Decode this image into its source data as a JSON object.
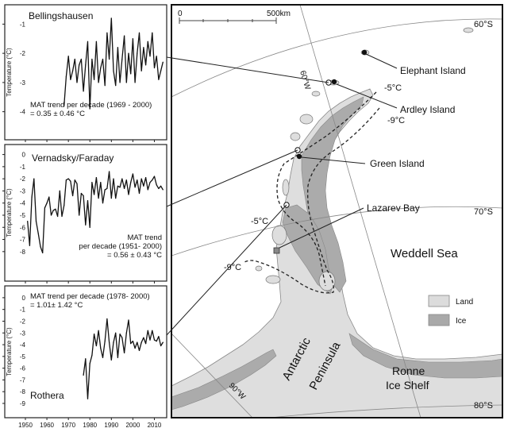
{
  "chart_data": [
    {
      "type": "line",
      "title": "Bellingshausen",
      "ylabel": "Temperature (°C)",
      "trend_text": [
        "MAT trend per decade (1969 - 2000)",
        "= 0.35 ± 0.46 °C"
      ],
      "xlim": [
        1950,
        2015
      ],
      "ylim": [
        -4.2,
        -0.5
      ],
      "xticks": [
        "1950",
        "1960",
        "1970",
        "1980",
        "1990",
        "2000",
        "2010"
      ],
      "yticks": [
        "-1",
        "-2",
        "-3",
        "-4"
      ],
      "x": [
        1968,
        1969,
        1970,
        1971,
        1972,
        1973,
        1974,
        1975,
        1976,
        1977,
        1978,
        1979,
        1980,
        1981,
        1982,
        1983,
        1984,
        1985,
        1986,
        1987,
        1988,
        1989,
        1990,
        1991,
        1992,
        1993,
        1994,
        1995,
        1996,
        1997,
        1998,
        1999,
        2000,
        2001,
        2002,
        2003,
        2004,
        2005,
        2006,
        2007,
        2008,
        2009,
        2010,
        2011,
        2012,
        2013,
        2014
      ],
      "values": [
        -3.8,
        -2.8,
        -2.1,
        -2.9,
        -2.6,
        -2.2,
        -3.0,
        -2.4,
        -2.2,
        -3.3,
        -2.4,
        -1.6,
        -3.9,
        -2.2,
        -2.9,
        -1.6,
        -3.0,
        -2.5,
        -2.2,
        -3.1,
        -1.3,
        -2.2,
        -0.8,
        -2.6,
        -3.1,
        -1.8,
        -3.0,
        -2.2,
        -1.4,
        -3.0,
        -2.0,
        -2.7,
        -1.5,
        -3.0,
        -2.0,
        -1.3,
        -2.6,
        -1.8,
        -2.4,
        -1.6,
        -2.1,
        -1.3,
        -2.5,
        -2.1,
        -2.9,
        -2.6,
        -2.3
      ]
    },
    {
      "type": "line",
      "title": "Vernadsky/Faraday",
      "ylabel": "Temperature (°C)",
      "trend_text": [
        "MAT trend",
        "per decade (1951- 2000)",
        "= 0.56 ± 0.43 °C"
      ],
      "xlim": [
        1950,
        2015
      ],
      "ylim": [
        -8.6,
        0.3
      ],
      "xticks": [
        "1950",
        "1960",
        "1970",
        "1980",
        "1990",
        "2000",
        "2010"
      ],
      "yticks": [
        "0",
        "-1",
        "-2",
        "-3",
        "-4",
        "-5",
        "-6",
        "-7",
        "-8"
      ],
      "x": [
        1951,
        1952,
        1953,
        1954,
        1955,
        1956,
        1957,
        1958,
        1959,
        1960,
        1961,
        1962,
        1963,
        1964,
        1965,
        1966,
        1967,
        1968,
        1969,
        1970,
        1971,
        1972,
        1973,
        1974,
        1975,
        1976,
        1977,
        1978,
        1979,
        1980,
        1981,
        1982,
        1983,
        1984,
        1985,
        1986,
        1987,
        1988,
        1989,
        1990,
        1991,
        1992,
        1993,
        1994,
        1995,
        1996,
        1997,
        1998,
        1999,
        2000,
        2001,
        2002,
        2003,
        2004,
        2005,
        2006,
        2007,
        2008,
        2009,
        2010,
        2011,
        2012,
        2013,
        2014
      ],
      "values": [
        -5.5,
        -7.5,
        -3.5,
        -2.0,
        -5.5,
        -6.5,
        -7.6,
        -8.1,
        -4.4,
        -4.0,
        -3.5,
        -5.0,
        -4.6,
        -4.5,
        -5.1,
        -3.0,
        -5.1,
        -4.2,
        -2.1,
        -2.0,
        -2.2,
        -3.4,
        -2.1,
        -2.4,
        -5.0,
        -3.2,
        -3.4,
        -5.8,
        -3.8,
        -6.0,
        -2.3,
        -3.3,
        -1.9,
        -3.6,
        -2.3,
        -4.0,
        -2.9,
        -2.8,
        -1.4,
        -3.6,
        -2.0,
        -3.6,
        -2.6,
        -2.7,
        -2.0,
        -2.8,
        -2.1,
        -3.3,
        -2.3,
        -1.6,
        -2.7,
        -2.1,
        -3.2,
        -2.0,
        -2.6,
        -1.9,
        -2.9,
        -2.3,
        -2.1,
        -1.8,
        -2.5,
        -2.8,
        -2.6,
        -2.9
      ]
    },
    {
      "type": "line",
      "title": "Rothera",
      "ylabel": "Temperature (°C)",
      "trend_text": [
        "MAT trend per decade (1978- 2000)",
        "= 1.01± 1.42 °C"
      ],
      "xlim": [
        1950,
        2015
      ],
      "ylim": [
        -9.0,
        0.6
      ],
      "xticks": [
        "1950",
        "1960",
        "1970",
        "1980",
        "1990",
        "2000",
        "2010"
      ],
      "yticks": [
        "0",
        "-1",
        "-2",
        "-3",
        "-4",
        "-5",
        "-6",
        "-7",
        "-8",
        "-9"
      ],
      "x": [
        1977,
        1978,
        1979,
        1980,
        1981,
        1982,
        1983,
        1984,
        1985,
        1986,
        1987,
        1988,
        1989,
        1990,
        1991,
        1992,
        1993,
        1994,
        1995,
        1996,
        1997,
        1998,
        1999,
        2000,
        2001,
        2002,
        2003,
        2004,
        2005,
        2006,
        2007,
        2008,
        2009,
        2010,
        2011,
        2012,
        2013,
        2014
      ],
      "values": [
        -6.6,
        -5.2,
        -8.6,
        -5.6,
        -4.9,
        -3.1,
        -4.1,
        -2.8,
        -4.3,
        -5.1,
        -3.7,
        -1.8,
        -3.8,
        -5.3,
        -3.8,
        -3.0,
        -5.1,
        -3.1,
        -3.4,
        -4.7,
        -3.0,
        -1.9,
        -3.9,
        -3.7,
        -4.3,
        -3.8,
        -4.5,
        -3.8,
        -3.4,
        -3.9,
        -2.8,
        -3.6,
        -2.8,
        -3.6,
        -3.7,
        -3.3,
        -4.1,
        -3.8
      ]
    }
  ],
  "map": {
    "scale_labels": [
      "0",
      "500km"
    ],
    "graticule_labels": [
      "60°S",
      "70°S",
      "80°S",
      "60°W",
      "90°W"
    ],
    "place_labels": {
      "elephant": "Elephant Island",
      "ardley": "Ardley Island",
      "green": "Green Island",
      "lazarev": "Lazarev Bay",
      "weddell": "Weddell Sea",
      "peninsula_1": "Antarctic",
      "peninsula_2": "Peninsula",
      "ronne_1": "Ronne",
      "ronne_2": "Ice Shelf"
    },
    "isotherm_labels": [
      "-5°C",
      "-9°C",
      "-5°C",
      "-9°C"
    ],
    "legend": [
      {
        "label": "Land",
        "color": "#dcdcdc"
      },
      {
        "label": "Ice",
        "color": "#a9a9a9"
      }
    ]
  }
}
